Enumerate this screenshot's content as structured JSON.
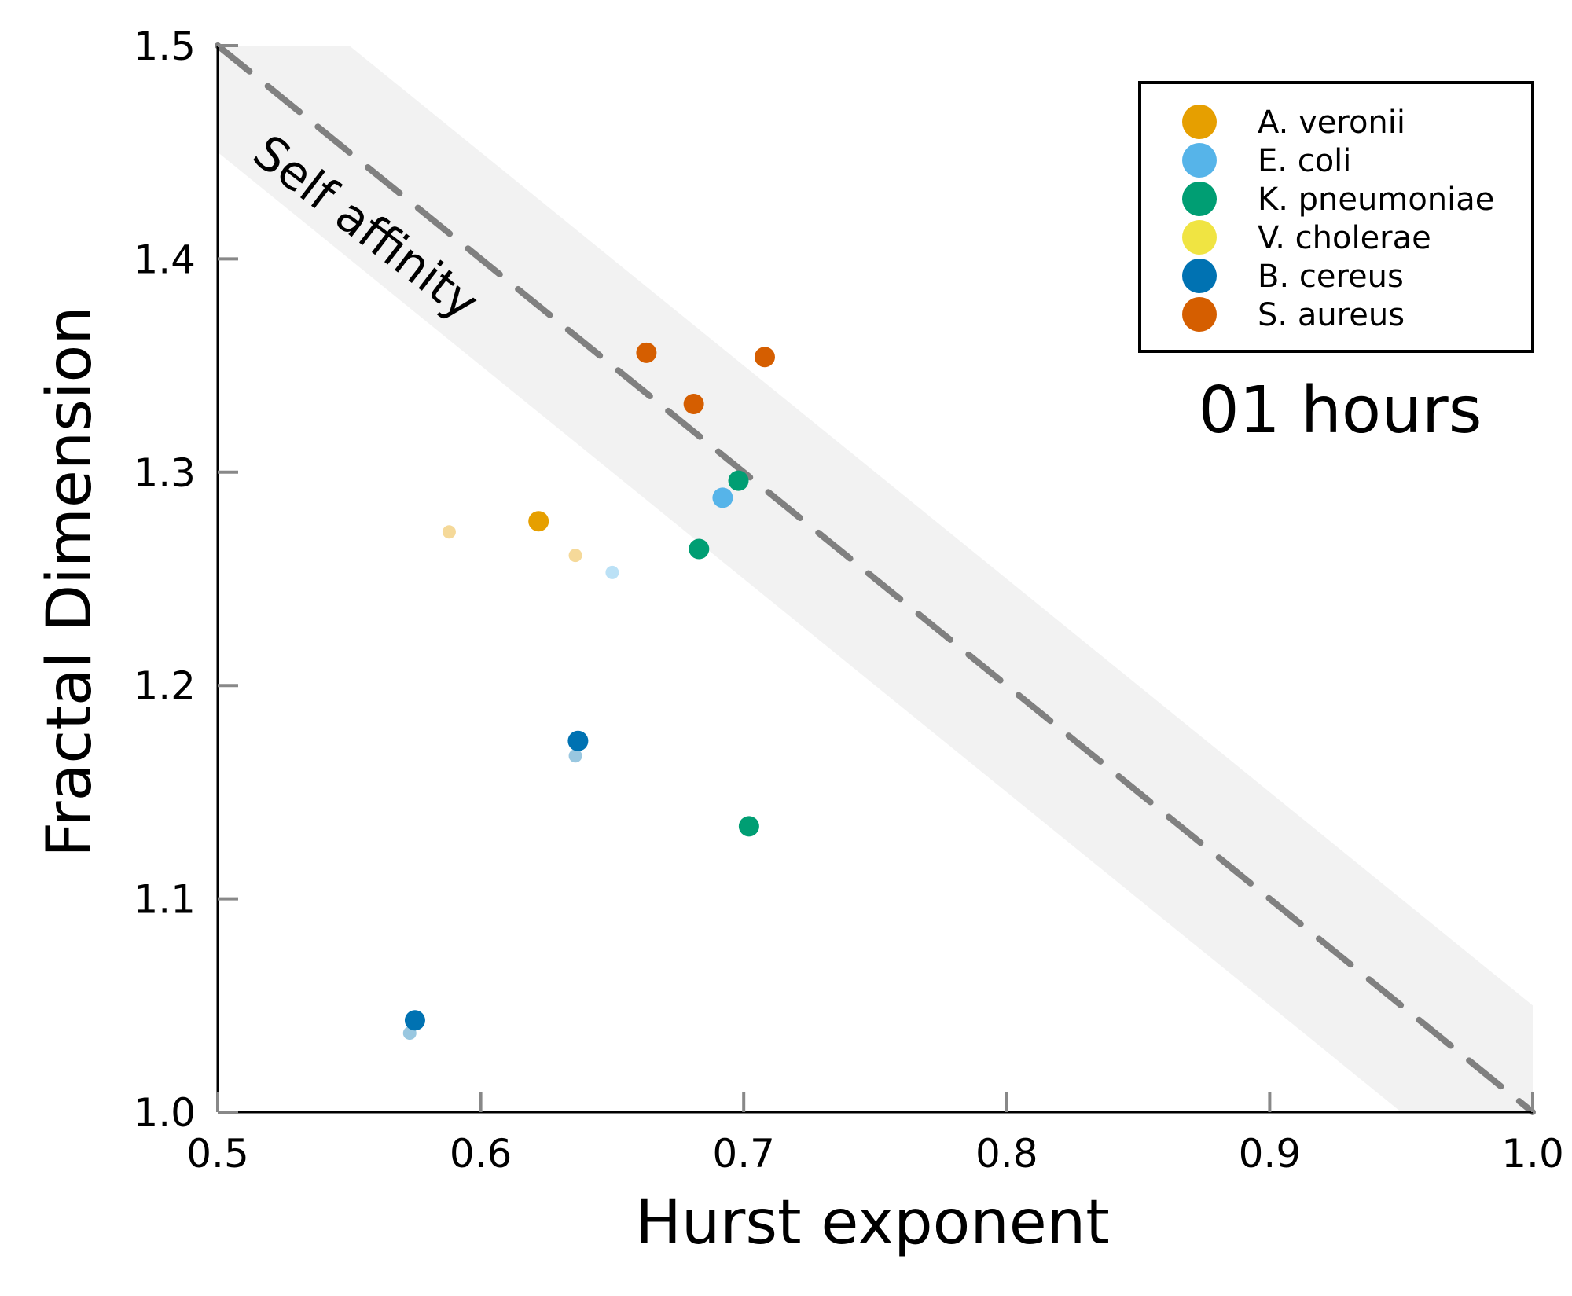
{
  "chart_data": {
    "type": "scatter",
    "title": "",
    "xlabel": "Hurst exponent",
    "ylabel": "Fractal Dimension",
    "xlim": [
      0.5,
      1.0
    ],
    "ylim": [
      1.0,
      1.5
    ],
    "xticks": [
      "0.5",
      "0.6",
      "0.7",
      "0.8",
      "0.9",
      "1.0"
    ],
    "yticks": [
      "1.0",
      "1.1",
      "1.2",
      "1.3",
      "1.4",
      "1.5"
    ],
    "grid": false,
    "legend_position": "top-right",
    "band": {
      "lower_offset": -0.05,
      "upper_offset": 0.05,
      "color": "#f2f2f2"
    },
    "reference_line": {
      "label": "Self affinity",
      "relation": "D = 2 - H",
      "color": "#808080",
      "style": "dashed"
    },
    "time_label": "01 hours",
    "series": [
      {
        "name": "A. veronii",
        "color": "#E69F00",
        "points": [
          [
            0.622,
            1.277
          ]
        ],
        "faded_points": [
          [
            0.588,
            1.272
          ],
          [
            0.636,
            1.261
          ]
        ]
      },
      {
        "name": "E. coli",
        "color": "#56B4E9",
        "points": [
          [
            0.692,
            1.288
          ]
        ],
        "faded_points": [
          [
            0.65,
            1.253
          ]
        ]
      },
      {
        "name": "K. pneumoniae",
        "color": "#009E73",
        "points": [
          [
            0.698,
            1.296
          ],
          [
            0.683,
            1.264
          ],
          [
            0.702,
            1.134
          ]
        ],
        "faded_points": []
      },
      {
        "name": "V. cholerae",
        "color": "#F0E442",
        "points": [],
        "faded_points": []
      },
      {
        "name": "B. cereus",
        "color": "#0072B2",
        "points": [
          [
            0.637,
            1.174
          ],
          [
            0.575,
            1.043
          ]
        ],
        "faded_points": [
          [
            0.636,
            1.167
          ],
          [
            0.573,
            1.037
          ]
        ]
      },
      {
        "name": "S. aureus",
        "color": "#D55E00",
        "points": [
          [
            0.663,
            1.356
          ],
          [
            0.708,
            1.354
          ],
          [
            0.681,
            1.332
          ]
        ],
        "faded_points": []
      }
    ]
  }
}
